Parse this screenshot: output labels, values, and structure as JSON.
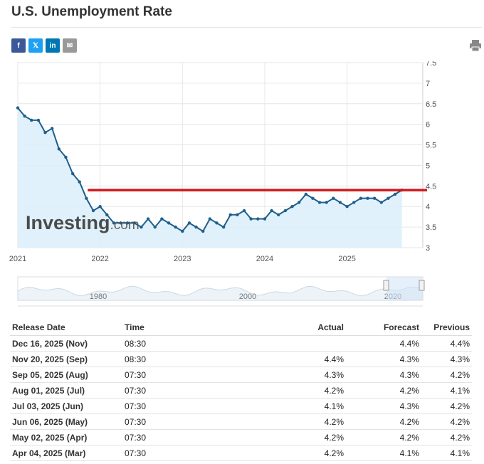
{
  "page": {
    "title": "U.S. Unemployment Rate"
  },
  "share": [
    {
      "icon": "facebook-icon",
      "glyph": "f",
      "color": "#3b5998"
    },
    {
      "icon": "x-icon",
      "glyph": "𝕏",
      "color": "#1da1f2"
    },
    {
      "icon": "linkedin-icon",
      "glyph": "in",
      "color": "#0077b5"
    },
    {
      "icon": "email-icon",
      "glyph": "✉",
      "color": "#999999"
    }
  ],
  "colors": {
    "line": "#1f5f8b",
    "fill": "#dbeefb",
    "refline": "#d0171d",
    "grid": "#e6e6e6"
  },
  "chart_data": {
    "type": "area",
    "watermark": {
      "brand": "Investing",
      "suffix": ".com"
    },
    "x_ticks": [
      "2021",
      "2022",
      "2023",
      "2024",
      "2025"
    ],
    "y_ticks": [
      "3",
      "3.5",
      "4",
      "4.5",
      "5",
      "5.5",
      "6",
      "6.5",
      "7",
      "7.5"
    ],
    "ylim": [
      3,
      7.5
    ],
    "reference_line": 4.4,
    "x": [
      "2021-01",
      "2021-02",
      "2021-03",
      "2021-04",
      "2021-05",
      "2021-06",
      "2021-07",
      "2021-08",
      "2021-09",
      "2021-10",
      "2021-11",
      "2021-12",
      "2022-01",
      "2022-02",
      "2022-03",
      "2022-04",
      "2022-05",
      "2022-06",
      "2022-07",
      "2022-08",
      "2022-09",
      "2022-10",
      "2022-11",
      "2022-12",
      "2023-01",
      "2023-02",
      "2023-03",
      "2023-04",
      "2023-05",
      "2023-06",
      "2023-07",
      "2023-08",
      "2023-09",
      "2023-10",
      "2023-11",
      "2023-12",
      "2024-01",
      "2024-02",
      "2024-03",
      "2024-04",
      "2024-05",
      "2024-06",
      "2024-07",
      "2024-08",
      "2024-09",
      "2024-10",
      "2024-11",
      "2024-12",
      "2025-01",
      "2025-02",
      "2025-03",
      "2025-04",
      "2025-05",
      "2025-06",
      "2025-07",
      "2025-08",
      "2025-09"
    ],
    "values": [
      6.4,
      6.2,
      6.1,
      6.1,
      5.8,
      5.9,
      5.4,
      5.2,
      4.8,
      4.6,
      4.2,
      3.9,
      4.0,
      3.8,
      3.6,
      3.6,
      3.6,
      3.6,
      3.5,
      3.7,
      3.5,
      3.7,
      3.6,
      3.5,
      3.4,
      3.6,
      3.5,
      3.4,
      3.7,
      3.6,
      3.5,
      3.8,
      3.8,
      3.9,
      3.7,
      3.7,
      3.7,
      3.9,
      3.8,
      3.9,
      4.0,
      4.1,
      4.3,
      4.2,
      4.1,
      4.1,
      4.2,
      4.1,
      4.0,
      4.1,
      4.2,
      4.2,
      4.2,
      4.1,
      4.2,
      4.3,
      4.4
    ]
  },
  "navigator": {
    "labels": [
      "1980",
      "2000",
      "2020"
    ]
  },
  "table": {
    "headers": {
      "date": "Release Date",
      "time": "Time",
      "actual": "Actual",
      "forecast": "Forecast",
      "previous": "Previous"
    },
    "rows": [
      {
        "date": "Dec 16, 2025 (Nov)",
        "time": "08:30",
        "actual": "",
        "actual_color": "",
        "forecast": "4.4%",
        "previous": "4.4%"
      },
      {
        "date": "Nov 20, 2025 (Sep)",
        "time": "08:30",
        "actual": "4.4%",
        "actual_color": "red",
        "forecast": "4.3%",
        "previous": "4.3%"
      },
      {
        "date": "Sep 05, 2025 (Aug)",
        "time": "07:30",
        "actual": "4.3%",
        "actual_color": "",
        "forecast": "4.3%",
        "previous": "4.2%"
      },
      {
        "date": "Aug 01, 2025 (Jul)",
        "time": "07:30",
        "actual": "4.2%",
        "actual_color": "",
        "forecast": "4.2%",
        "previous": "4.1%"
      },
      {
        "date": "Jul 03, 2025 (Jun)",
        "time": "07:30",
        "actual": "4.1%",
        "actual_color": "green",
        "forecast": "4.3%",
        "previous": "4.2%"
      },
      {
        "date": "Jun 06, 2025 (May)",
        "time": "07:30",
        "actual": "4.2%",
        "actual_color": "",
        "forecast": "4.2%",
        "previous": "4.2%"
      },
      {
        "date": "May 02, 2025 (Apr)",
        "time": "07:30",
        "actual": "4.2%",
        "actual_color": "",
        "forecast": "4.2%",
        "previous": "4.2%"
      },
      {
        "date": "Apr 04, 2025 (Mar)",
        "time": "07:30",
        "actual": "4.2%",
        "actual_color": "red",
        "forecast": "4.1%",
        "previous": "4.1%"
      }
    ]
  }
}
